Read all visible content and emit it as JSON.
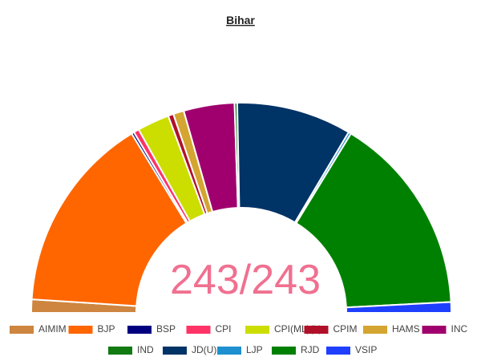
{
  "chart_data": {
    "type": "pie",
    "half": true,
    "title": "Bihar",
    "center_label": "243/243",
    "categories": [
      "AIMIM",
      "BJP",
      "BSP",
      "CPI",
      "CPI(ML)(L)",
      "CPIM",
      "HAMS",
      "INC",
      "IND",
      "JD(U)",
      "LJP",
      "RJD",
      "VSIP"
    ],
    "values": [
      5,
      74,
      1,
      2,
      12,
      2,
      4,
      19,
      1,
      43,
      1,
      75,
      4
    ],
    "colors": [
      "#cd853f",
      "#ff6600",
      "#000080",
      "#ff3366",
      "#ccdd00",
      "#b0102a",
      "#d4a530",
      "#a0006e",
      "#117a11",
      "#003366",
      "#1e90d0",
      "#008000",
      "#1f3fff"
    ]
  }
}
